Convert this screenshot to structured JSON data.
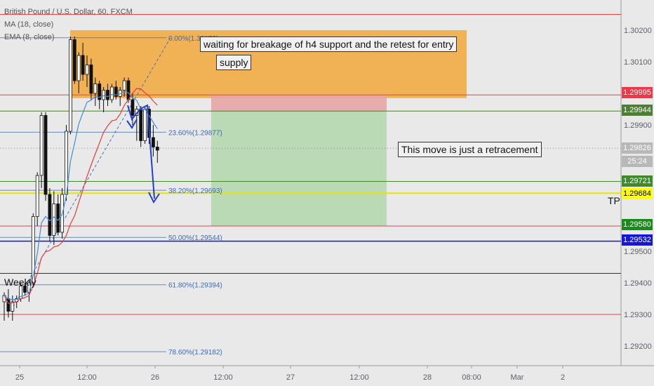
{
  "legend": {
    "symbol": "British Pound / U.S. Dollar, 60, FXCM",
    "ma": "MA (18, close)",
    "ema": "EMA (8, close)"
  },
  "notes": {
    "entry": "waiting for breakage of h4 support and the retest for entry",
    "supply": "supply",
    "retracement": "This move is just a retracement",
    "tp": "TP",
    "weekly": "Weekly"
  },
  "fib_labels": [
    "0.00%(1.30176)",
    "23.60%(1.29877)",
    "38.20%(1.29693)",
    "50.00%(1.29544)",
    "61.80%(1.29394)",
    "78.60%(1.29182)"
  ],
  "price_axis": {
    "ticks": [
      "1.30200",
      "1.30100",
      "1.29900",
      "1.29500",
      "1.29400",
      "1.29300",
      "1.29200"
    ],
    "badges": [
      {
        "text": "1.29995",
        "color": "#f23645"
      },
      {
        "text": "1.29944",
        "color": "#4e7d35"
      },
      {
        "text": "1.29826",
        "color": "#b8b8b8"
      },
      {
        "text": "25:24",
        "color": "#b8b8b8"
      },
      {
        "text": "1.29721",
        "color": "#3f8a2b"
      },
      {
        "text": "1.29684",
        "color": "#ffff00",
        "text_color": "#000000"
      },
      {
        "text": "1.29580",
        "color": "#1a8a1a"
      },
      {
        "text": "1.29532",
        "color": "#1515e0"
      }
    ]
  },
  "time_axis": {
    "ticks": [
      "25",
      "12:00",
      "26",
      "12:00",
      "27",
      "12:00",
      "28",
      "08:00",
      "Mar",
      "2"
    ]
  },
  "chart_data": {
    "type": "candlestick",
    "symbol": "British Pound / U.S. Dollar",
    "timeframe": "60",
    "source": "FXCM",
    "indicators": [
      "MA (18, close)",
      "EMA (8, close)"
    ],
    "fib_levels": [
      {
        "pct": 0.0,
        "price": 1.30176
      },
      {
        "pct": 23.6,
        "price": 1.29877
      },
      {
        "pct": 38.2,
        "price": 1.29693
      },
      {
        "pct": 50.0,
        "price": 1.29544
      },
      {
        "pct": 61.8,
        "price": 1.29394
      },
      {
        "pct": 78.6,
        "price": 1.29182
      }
    ],
    "horizontal_levels": [
      1.29995,
      1.29944,
      1.29721,
      1.29684,
      1.2958,
      1.29532
    ],
    "current_price": 1.29826,
    "ylim": [
      1.2915,
      1.303
    ],
    "ytick_values": [
      1.302,
      1.301,
      1.299,
      1.295,
      1.294,
      1.293,
      1.292
    ],
    "candles": [
      {
        "o": 1.2934,
        "h": 1.2937,
        "l": 1.2928,
        "c": 1.2936
      },
      {
        "o": 1.2935,
        "h": 1.2938,
        "l": 1.2929,
        "c": 1.2931
      },
      {
        "o": 1.2931,
        "h": 1.2936,
        "l": 1.2928,
        "c": 1.2934
      },
      {
        "o": 1.2934,
        "h": 1.2936,
        "l": 1.2932,
        "c": 1.2935
      },
      {
        "o": 1.2935,
        "h": 1.294,
        "l": 1.2934,
        "c": 1.2939
      },
      {
        "o": 1.2939,
        "h": 1.294,
        "l": 1.2936,
        "c": 1.2937
      },
      {
        "o": 1.2937,
        "h": 1.2941,
        "l": 1.2934,
        "c": 1.294
      },
      {
        "o": 1.294,
        "h": 1.2962,
        "l": 1.2939,
        "c": 1.2961
      },
      {
        "o": 1.2961,
        "h": 1.2975,
        "l": 1.2958,
        "c": 1.2974
      },
      {
        "o": 1.2974,
        "h": 1.2994,
        "l": 1.297,
        "c": 1.2993
      },
      {
        "o": 1.2993,
        "h": 1.2994,
        "l": 1.2966,
        "c": 1.2968
      },
      {
        "o": 1.2968,
        "h": 1.297,
        "l": 1.2953,
        "c": 1.2955
      },
      {
        "o": 1.2955,
        "h": 1.2969,
        "l": 1.2952,
        "c": 1.2965
      },
      {
        "o": 1.2965,
        "h": 1.2968,
        "l": 1.2955,
        "c": 1.2956
      },
      {
        "o": 1.2956,
        "h": 1.297,
        "l": 1.2954,
        "c": 1.2968
      },
      {
        "o": 1.2968,
        "h": 1.299,
        "l": 1.2966,
        "c": 1.2988
      },
      {
        "o": 1.2988,
        "h": 1.3018,
        "l": 1.2987,
        "c": 1.3017
      },
      {
        "o": 1.3017,
        "h": 1.3018,
        "l": 1.3003,
        "c": 1.3004
      },
      {
        "o": 1.3004,
        "h": 1.3013,
        "l": 1.3,
        "c": 1.3012
      },
      {
        "o": 1.3012,
        "h": 1.3016,
        "l": 1.3004,
        "c": 1.3006
      },
      {
        "o": 1.3006,
        "h": 1.3012,
        "l": 1.3002,
        "c": 1.3009
      },
      {
        "o": 1.3009,
        "h": 1.3011,
        "l": 1.2998,
        "c": 1.3
      },
      {
        "o": 1.3,
        "h": 1.3005,
        "l": 1.2996,
        "c": 1.3003
      },
      {
        "o": 1.3003,
        "h": 1.3004,
        "l": 1.2995,
        "c": 1.2998
      },
      {
        "o": 1.2998,
        "h": 1.3002,
        "l": 1.2994,
        "c": 1.3001
      },
      {
        "o": 1.3001,
        "h": 1.3003,
        "l": 1.2996,
        "c": 1.2998
      },
      {
        "o": 1.2998,
        "h": 1.3003,
        "l": 1.2997,
        "c": 1.3002
      },
      {
        "o": 1.3002,
        "h": 1.3004,
        "l": 1.2998,
        "c": 1.2999
      },
      {
        "o": 1.2999,
        "h": 1.3002,
        "l": 1.2996,
        "c": 1.3001
      },
      {
        "o": 1.3001,
        "h": 1.3005,
        "l": 1.2999,
        "c": 1.3004
      },
      {
        "o": 1.3004,
        "h": 1.3005,
        "l": 1.2997,
        "c": 1.2998
      },
      {
        "o": 1.2998,
        "h": 1.3,
        "l": 1.299,
        "c": 1.2993
      },
      {
        "o": 1.2993,
        "h": 1.2996,
        "l": 1.2985,
        "c": 1.2995
      },
      {
        "o": 1.2995,
        "h": 1.2996,
        "l": 1.2983,
        "c": 1.2985
      },
      {
        "o": 1.2985,
        "h": 1.2996,
        "l": 1.2984,
        "c": 1.2995
      },
      {
        "o": 1.2995,
        "h": 1.2996,
        "l": 1.2984,
        "c": 1.2986
      },
      {
        "o": 1.2986,
        "h": 1.299,
        "l": 1.298,
        "c": 1.2983
      },
      {
        "o": 1.2983,
        "h": 1.2985,
        "l": 1.2978,
        "c": 1.2982
      }
    ]
  }
}
